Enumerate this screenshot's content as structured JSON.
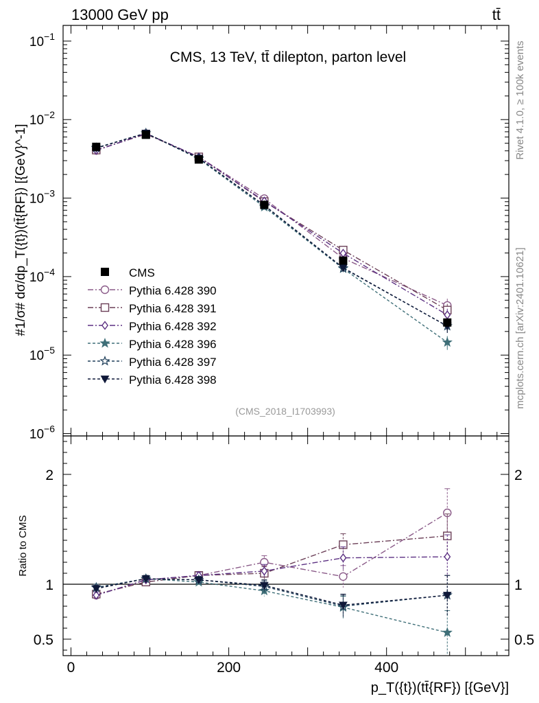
{
  "header": {
    "left": "13000 GeV pp",
    "right": "tt̄"
  },
  "side_labels": {
    "rivet": "Rivet 4.1.0, ≥ 100k events",
    "mcplots": "mcplots.cern.ch [arXiv:2401.10621]"
  },
  "chart_data": {
    "type": "line",
    "title": "CMS, 13 TeV, tt̄ dilepton, parton level",
    "analysis_id": "(CMS_2018_I1703993)",
    "xlabel": "p_T({t})(tt̄{RF}) [{GeV}]",
    "ylabel_main": "#1/σ# dσ/dp_T({t})(tt̄{RF}) [{GeV}^-1]",
    "ylabel_ratio": "Ratio to CMS",
    "xlim": [
      -10,
      555
    ],
    "main_ylim_log10": [
      -6.03,
      -0.8
    ],
    "ratio_ylim": [
      0.35,
      2.35
    ],
    "x_ticks": [
      0,
      200,
      400
    ],
    "x_tick_labels": [
      "0",
      "200",
      "400"
    ],
    "main_y_tick_labels": [
      {
        "exp": -1,
        "label": "10",
        "sup": "−1"
      },
      {
        "exp": -2,
        "label": "10",
        "sup": "−2"
      },
      {
        "exp": -3,
        "label": "10",
        "sup": "−3"
      },
      {
        "exp": -4,
        "label": "10",
        "sup": "−4"
      },
      {
        "exp": -5,
        "label": "10",
        "sup": "−5"
      },
      {
        "exp": -6,
        "label": "10",
        "sup": "−6"
      }
    ],
    "ratio_y_ticks": [
      0.5,
      1,
      2
    ],
    "ratio_y_tick_labels": [
      "0.5",
      "1",
      "2"
    ],
    "x": [
      32,
      95,
      162,
      245,
      345,
      477
    ],
    "x_err": [
      [
        0,
        64
      ],
      [
        64,
        128
      ],
      [
        128,
        200
      ],
      [
        200,
        290
      ],
      [
        290,
        400
      ],
      [
        400,
        555
      ]
    ],
    "data": {
      "name": "CMS",
      "values": [
        0.0045,
        0.0064,
        0.0031,
        0.00082,
        0.00016,
        2.6e-05
      ],
      "rel_err": [
        0.04,
        0.04,
        0.04,
        0.05,
        0.08,
        0.12
      ]
    },
    "series": [
      {
        "name": "Pythia 6.428 390",
        "color": "#8a5a88",
        "marker": "circle-open",
        "dash": "8,3,2,3",
        "ratio": [
          0.9,
          1.04,
          1.08,
          1.2,
          1.07,
          1.65
        ],
        "ratio_err": [
          0.03,
          0.03,
          0.03,
          0.06,
          0.1,
          0.22
        ]
      },
      {
        "name": "Pythia 6.428 391",
        "color": "#6b3f57",
        "marker": "square-open",
        "dash": "8,3,2,3",
        "ratio": [
          0.91,
          1.02,
          1.08,
          1.1,
          1.36,
          1.44
        ],
        "ratio_err": [
          0.03,
          0.03,
          0.03,
          0.06,
          0.1,
          0.2
        ]
      },
      {
        "name": "Pythia 6.428 392",
        "color": "#5b2f82",
        "marker": "diamond-open",
        "dash": "8,3,2,3",
        "ratio": [
          0.9,
          1.04,
          1.08,
          1.12,
          1.24,
          1.25
        ],
        "ratio_err": [
          0.03,
          0.03,
          0.03,
          0.06,
          0.1,
          0.2
        ]
      },
      {
        "name": "Pythia 6.428 396",
        "color": "#3f6f78",
        "marker": "star-filled",
        "dash": "4,3",
        "ratio": [
          0.97,
          1.05,
          1.02,
          0.94,
          0.79,
          0.56
        ],
        "ratio_err": [
          0.03,
          0.03,
          0.03,
          0.05,
          0.1,
          0.2
        ]
      },
      {
        "name": "Pythia 6.428 397",
        "color": "#1f3f5a",
        "marker": "star-open",
        "dash": "4,3",
        "ratio": [
          0.97,
          1.05,
          1.04,
          0.98,
          0.8,
          0.9
        ],
        "ratio_err": [
          0.03,
          0.03,
          0.03,
          0.05,
          0.1,
          0.18
        ]
      },
      {
        "name": "Pythia 6.428 398",
        "color": "#0f1838",
        "marker": "triangle-down-filled",
        "dash": "4,3",
        "ratio": [
          0.96,
          1.05,
          1.04,
          0.99,
          0.81,
          0.9
        ],
        "ratio_err": [
          0.03,
          0.03,
          0.03,
          0.05,
          0.1,
          0.18
        ]
      }
    ],
    "legend_position": "lower-left"
  }
}
